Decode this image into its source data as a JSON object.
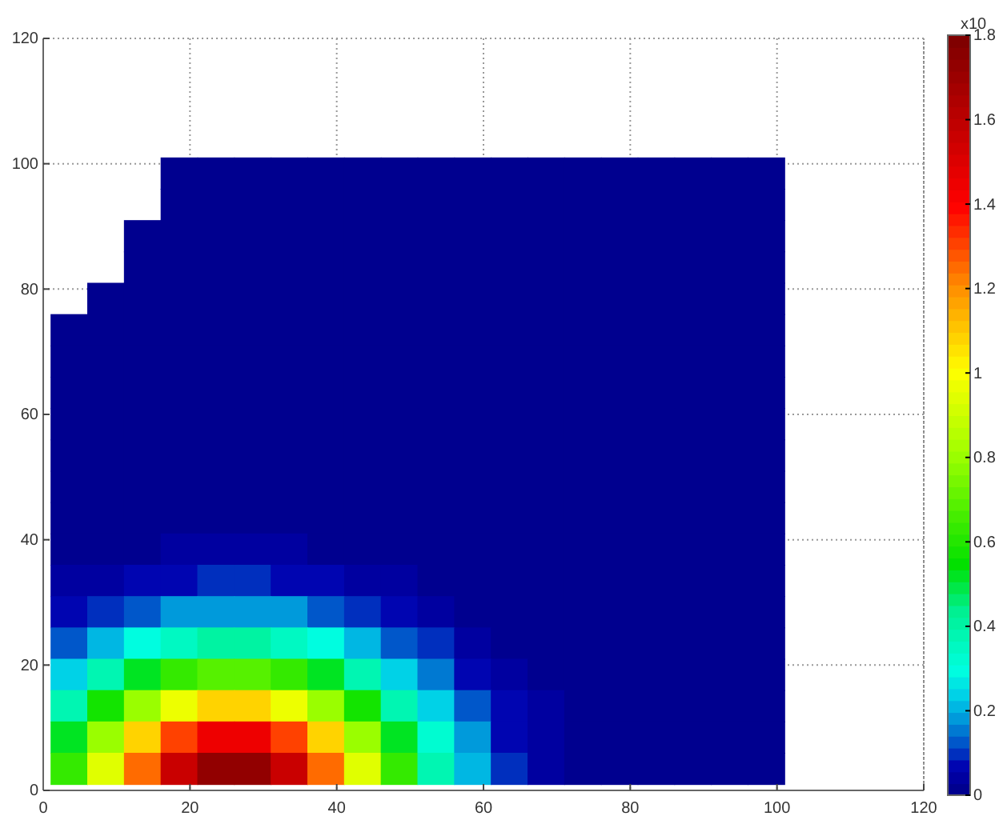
{
  "chart_data": {
    "type": "heatmap",
    "x": [
      3.5,
      8.5,
      13.5,
      18.5,
      23.5,
      28.5,
      33.5,
      38.5,
      43.5,
      48.5,
      53.5,
      58.5,
      63.5,
      68.5,
      73.5,
      78.5,
      83.5,
      88.5,
      93.5,
      98.5
    ],
    "y": [
      98.5,
      93.5,
      88.5,
      83.5,
      78.5,
      73.5,
      68.5,
      63.5,
      58.5,
      53.5,
      48.5,
      43.5,
      38.5,
      33.5,
      28.5,
      23.5,
      18.5,
      13.5,
      8.5,
      3.5
    ],
    "cells": [
      [
        null,
        null,
        null,
        0,
        0,
        0,
        0,
        0,
        0,
        0,
        0,
        0,
        0,
        0,
        0,
        0,
        0,
        0,
        0,
        0
      ],
      [
        null,
        null,
        null,
        0,
        0,
        0,
        0,
        0,
        0,
        0,
        0,
        0,
        0,
        0,
        0,
        0,
        0,
        0,
        0,
        0
      ],
      [
        null,
        null,
        0,
        0,
        0,
        0,
        0,
        0,
        0,
        0,
        0,
        0,
        0,
        0,
        0,
        0,
        0,
        0,
        0,
        0
      ],
      [
        null,
        null,
        0,
        0,
        0,
        0,
        0,
        0,
        0,
        0,
        0,
        0,
        0,
        0,
        0,
        0,
        0,
        0,
        0,
        0
      ],
      [
        null,
        0,
        0,
        0,
        0,
        0,
        0,
        0,
        0,
        0,
        0,
        0,
        0,
        0,
        0,
        0,
        0,
        0,
        0,
        0
      ],
      [
        0,
        0,
        0,
        0,
        0,
        0,
        0,
        0,
        0,
        0,
        0,
        0,
        0,
        0,
        0,
        0,
        0,
        0,
        0,
        0
      ],
      [
        0,
        0,
        0,
        0,
        0,
        0,
        0,
        0,
        0,
        0,
        0,
        0,
        0,
        0,
        0,
        0,
        0,
        0,
        0,
        0
      ],
      [
        0,
        0,
        0,
        0,
        0,
        0,
        0,
        0,
        0,
        0,
        0,
        0,
        0,
        0,
        0,
        0,
        0,
        0,
        0,
        0
      ],
      [
        0,
        0,
        0,
        0,
        0,
        0,
        0,
        0,
        0,
        0,
        0,
        0,
        0,
        0,
        0,
        0,
        0,
        0,
        0,
        0
      ],
      [
        0,
        0,
        0,
        0,
        0,
        0,
        0,
        0,
        0,
        0,
        0,
        0,
        0,
        0,
        0,
        0,
        0,
        0,
        0,
        0
      ],
      [
        0,
        0,
        0,
        0,
        0,
        0,
        0,
        0,
        0,
        0,
        0,
        0,
        0,
        0,
        0,
        0,
        0,
        0,
        0,
        0
      ],
      [
        0,
        0,
        0,
        0,
        0,
        0,
        0,
        0,
        0,
        0,
        0,
        0,
        0,
        0,
        0,
        0,
        0,
        0,
        0,
        0
      ],
      [
        0.01,
        0.02,
        0.02,
        0.03,
        0.03,
        0.03,
        0.03,
        0.02,
        0.02,
        0.01,
        0,
        0,
        0,
        0,
        0,
        0,
        0,
        0,
        0,
        0
      ],
      [
        0.03,
        0.05,
        0.06,
        0.08,
        0.09,
        0.09,
        0.08,
        0.06,
        0.05,
        0.03,
        0.02,
        0,
        0,
        0,
        0,
        0,
        0,
        0,
        0,
        0
      ],
      [
        0.07,
        0.1,
        0.14,
        0.18,
        0.19,
        0.19,
        0.18,
        0.14,
        0.1,
        0.07,
        0.04,
        0.02,
        0.01,
        0,
        0,
        0,
        0,
        0,
        0,
        0
      ],
      [
        0.14,
        0.21,
        0.29,
        0.36,
        0.4,
        0.4,
        0.36,
        0.29,
        0.21,
        0.14,
        0.09,
        0.05,
        0.02,
        0,
        0,
        0,
        0,
        0,
        0,
        0
      ],
      [
        0.25,
        0.38,
        0.51,
        0.63,
        0.7,
        0.7,
        0.63,
        0.51,
        0.38,
        0.25,
        0.15,
        0.08,
        0.04,
        0.02,
        0,
        0,
        0,
        0,
        0,
        0
      ],
      [
        0.39,
        0.58,
        0.8,
        0.98,
        1.08,
        1.08,
        0.98,
        0.8,
        0.58,
        0.39,
        0.23,
        0.12,
        0.06,
        0.03,
        0.01,
        0,
        0,
        0,
        0,
        0
      ],
      [
        0.52,
        0.79,
        1.07,
        1.32,
        1.45,
        1.45,
        1.32,
        1.07,
        0.79,
        0.52,
        0.31,
        0.17,
        0.08,
        0.04,
        0.01,
        0,
        0,
        0,
        0,
        0
      ],
      [
        0.62,
        0.93,
        1.26,
        1.55,
        1.72,
        1.72,
        1.55,
        1.26,
        0.93,
        0.62,
        0.37,
        0.2,
        0.09,
        0.04,
        0.02,
        0,
        0,
        0,
        0,
        0
      ]
    ],
    "xlim": [
      0,
      120
    ],
    "ylim": [
      0,
      120
    ],
    "xticks": [
      0,
      20,
      40,
      60,
      80,
      100,
      120
    ],
    "yticks": [
      0,
      20,
      40,
      60,
      80,
      100,
      120
    ],
    "clim": [
      0,
      1.8
    ],
    "cticks": [
      0,
      0.2,
      0.4,
      0.6,
      0.8,
      1,
      1.2,
      1.4,
      1.6,
      1.8
    ],
    "grid": true,
    "annotations": [
      "x10"
    ]
  }
}
